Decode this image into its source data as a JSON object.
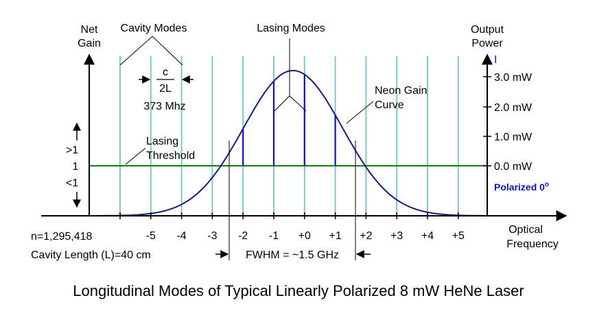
{
  "title": "Longitudinal Modes of Typical Linearly Polarized 8 mW HeNe Laser",
  "axes": {
    "y_left": [
      "Net",
      "Gain"
    ],
    "y_right": [
      "Output",
      "Power"
    ],
    "x": [
      "Optical",
      "Frequency"
    ],
    "gain_levels": [
      ">1",
      "1",
      "<1"
    ]
  },
  "power_scale": {
    "marker": "I",
    "ticks": [
      "3.0 mW",
      "2.0 mW",
      "1.0 mW",
      "0.0 mW"
    ],
    "polarized_label": "Polarized 0",
    "polarized_sup": "o"
  },
  "annotations": {
    "cavity_modes": "Cavity Modes",
    "spacing_num": "c",
    "spacing_den": "2L",
    "spacing_value": "373 Mhz",
    "lasing_modes": "Lasing Modes",
    "neon_gain": [
      "Neon Gain",
      "Curve"
    ],
    "threshold": [
      "Lasing",
      "Threshold"
    ],
    "fwhm": "FWHM = ~1.5 GHz",
    "mode_count": "n=1,295,418",
    "cavity_length": "Cavity Length (L)=40 cm"
  },
  "modes": {
    "labels": [
      "-5",
      "-4",
      "-3",
      "-2",
      "-1",
      "+0",
      "+1",
      "+2",
      "+3",
      "+4",
      "+5"
    ],
    "lasing": [
      "-2",
      "-1",
      "+0",
      "+1"
    ]
  },
  "colors": {
    "mode_line": "#7fc8c8",
    "threshold": "#1a7a1a",
    "gain_curve": "#1a1a7a",
    "lasing": "#1010c0",
    "text": "#000000"
  }
}
